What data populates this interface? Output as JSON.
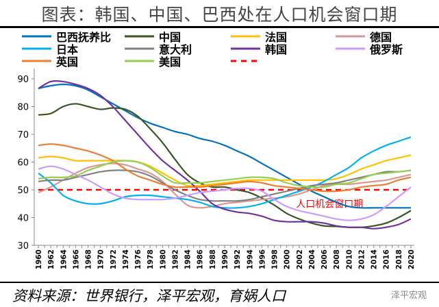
{
  "title": "图表：韩国、中国、巴西处在人口机会窗口期",
  "source": "资料来源：世界银行，泽平宏观，育娲人口",
  "watermark": "泽平宏观",
  "chart_data": {
    "type": "line",
    "title": "图表：韩国、中国、巴西处在人口机会窗口期",
    "xlabel": "",
    "ylabel": "",
    "ylim": [
      30,
      90
    ],
    "yticks": [
      30,
      40,
      50,
      60,
      70,
      80,
      90
    ],
    "xlim": [
      1960,
      2020
    ],
    "xticks": [
      1960,
      1962,
      1964,
      1966,
      1968,
      1970,
      1972,
      1974,
      1976,
      1978,
      1980,
      1982,
      1984,
      1986,
      1988,
      1990,
      1992,
      1994,
      1996,
      1998,
      2000,
      2002,
      2004,
      2006,
      2008,
      2010,
      2012,
      2014,
      2016,
      2018,
      2020
    ],
    "grid": false,
    "legend_position": "top",
    "x": [
      1960,
      1962,
      1964,
      1966,
      1968,
      1970,
      1972,
      1974,
      1976,
      1978,
      1980,
      1982,
      1984,
      1986,
      1988,
      1990,
      1992,
      1994,
      1996,
      1998,
      2000,
      2002,
      2004,
      2006,
      2008,
      2010,
      2012,
      2014,
      2016,
      2018,
      2020
    ],
    "series": [
      {
        "name": "巴西抚养比",
        "color": "#0070C0",
        "values": [
          86.5,
          87.5,
          88,
          87.5,
          86,
          83.5,
          81,
          78.5,
          76,
          74,
          72.5,
          71,
          70,
          68.5,
          67.5,
          66,
          64,
          62,
          59.5,
          57,
          54.5,
          52,
          49.5,
          47.5,
          45.5,
          44,
          43.5,
          43.5,
          43.5,
          43.5,
          43.5
        ]
      },
      {
        "name": "中国",
        "color": "#375623",
        "values": [
          77,
          77.5,
          80,
          81,
          80,
          79,
          79.5,
          79,
          76.5,
          72,
          67,
          61,
          55.5,
          52.5,
          51,
          51,
          50,
          49,
          47,
          44.5,
          41.5,
          39.5,
          38,
          37,
          36.8,
          36.5,
          36.5,
          37,
          38,
          40,
          42.5
        ]
      },
      {
        "name": "法国",
        "color": "#FFC000",
        "values": [
          61.5,
          62,
          61.5,
          60.5,
          60.5,
          60.5,
          60.5,
          60.5,
          60,
          58.5,
          56,
          53.5,
          51.5,
          51.5,
          52,
          52.5,
          53,
          53.5,
          53.5,
          53.5,
          53.5,
          53.5,
          53.5,
          53.5,
          54,
          55.5,
          57.5,
          59,
          60.5,
          61.5,
          62.5
        ]
      },
      {
        "name": "德国",
        "color": "#DA9694",
        "values": [
          49,
          51,
          53.5,
          56,
          58,
          59,
          59.5,
          59,
          57.5,
          56,
          53,
          48.5,
          44.5,
          43.5,
          44,
          45,
          45.5,
          46,
          46.5,
          47,
          47.5,
          48.5,
          50,
          51.5,
          52,
          52,
          52.5,
          53,
          53.5,
          54.5,
          55.5
        ]
      },
      {
        "name": "日本",
        "color": "#00B0F0",
        "values": [
          56,
          52.5,
          48,
          46,
          45,
          45,
          46,
          47.5,
          48,
          48,
          47.5,
          47,
          46.5,
          45.5,
          44,
          43.5,
          43.5,
          44,
          45,
          46.5,
          48,
          49.5,
          51,
          53,
          55.5,
          58,
          61.5,
          64,
          66,
          67.5,
          69
        ]
      },
      {
        "name": "意大利",
        "color": "#808080",
        "values": [
          53,
          53.5,
          53.5,
          54.5,
          55.5,
          56.5,
          57,
          57,
          56.5,
          55,
          52.5,
          50,
          48,
          46.5,
          46,
          46,
          46,
          46.5,
          47.5,
          48.5,
          49.5,
          50.5,
          51.5,
          52,
          52.5,
          53.5,
          54.5,
          55.5,
          56.5,
          56.5,
          57
        ]
      },
      {
        "name": "韩国",
        "color": "#7030A0",
        "values": [
          86.5,
          89,
          89,
          88,
          86.5,
          84,
          80,
          75,
          70,
          65,
          60.5,
          57,
          53.5,
          49.5,
          45,
          43,
          42,
          41.5,
          40.5,
          39,
          38.5,
          38.5,
          38.5,
          38,
          37,
          36.5,
          36.5,
          36,
          36.5,
          37.5,
          39.5
        ]
      },
      {
        "name": "俄罗斯",
        "color": "#CC99FF",
        "values": [
          57.5,
          58.5,
          57.5,
          55.5,
          53.5,
          51,
          48.5,
          47,
          46.5,
          46.5,
          46.5,
          47,
          48,
          49,
          49.5,
          50,
          50.5,
          50.5,
          49.5,
          46.5,
          44,
          42.5,
          41.5,
          40.5,
          39.5,
          39,
          39.5,
          41,
          44,
          47.5,
          51
        ]
      },
      {
        "name": "英国",
        "color": "#ED7D31",
        "values": [
          66,
          66.5,
          66,
          65,
          64,
          62.5,
          60.5,
          57.5,
          55,
          53.5,
          52,
          51,
          51,
          51,
          51.5,
          52,
          52.5,
          53,
          52.5,
          51.5,
          51,
          50.5,
          50,
          49.5,
          49.5,
          50,
          51,
          51.5,
          52,
          53.5,
          54.5
        ]
      },
      {
        "name": "美国",
        "color": "#92D050",
        "values": [
          54,
          54.5,
          54.5,
          55,
          57,
          58.5,
          60,
          60.5,
          60,
          58,
          55,
          52.5,
          52.5,
          52.5,
          53,
          53.5,
          54,
          54.5,
          54.5,
          54,
          52.5,
          51.5,
          51,
          51,
          52,
          52.5,
          54,
          55.5,
          56,
          56.5,
          57
        ]
      }
    ],
    "reference_line": {
      "value": 50,
      "color": "#FF0000",
      "style": "dashed",
      "label": "人口机会窗口期"
    }
  }
}
